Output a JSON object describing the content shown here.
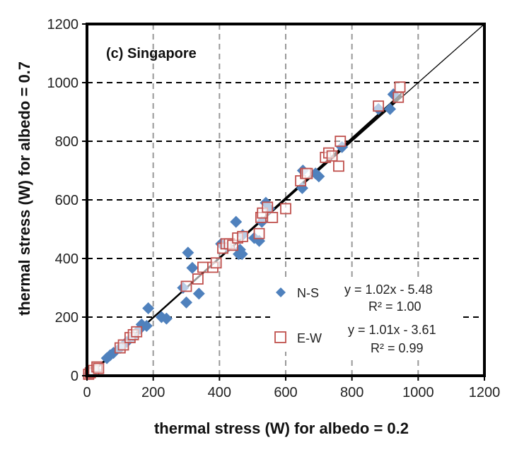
{
  "chart_data": {
    "type": "scatter",
    "title": "(c) Singapore",
    "xlabel": "thermal stress (W) for albedo = 0.2",
    "ylabel": "thermal stress (W) for albedo = 0.7",
    "xlim": [
      0,
      1200
    ],
    "ylim": [
      0,
      1200
    ],
    "xticks": [
      "0",
      "200",
      "400",
      "600",
      "800",
      "1000",
      "1200"
    ],
    "yticks": [
      "0",
      "200",
      "400",
      "600",
      "800",
      "1000",
      "1200"
    ],
    "grid": "dashed gray",
    "legend_position": "lower-right",
    "series": [
      {
        "name": "N-S",
        "marker": "diamond",
        "color": "#4f81bd",
        "points": [
          [
            5,
            5
          ],
          [
            10,
            8
          ],
          [
            15,
            10
          ],
          [
            25,
            20
          ],
          [
            60,
            60
          ],
          [
            70,
            70
          ],
          [
            80,
            78
          ],
          [
            100,
            95
          ],
          [
            120,
            115
          ],
          [
            140,
            135
          ],
          [
            160,
            160
          ],
          [
            165,
            175
          ],
          [
            180,
            170
          ],
          [
            185,
            230
          ],
          [
            225,
            200
          ],
          [
            240,
            195
          ],
          [
            290,
            300
          ],
          [
            300,
            250
          ],
          [
            305,
            420
          ],
          [
            318,
            368
          ],
          [
            338,
            280
          ],
          [
            405,
            450
          ],
          [
            425,
            440
          ],
          [
            450,
            525
          ],
          [
            458,
            415
          ],
          [
            462,
            430
          ],
          [
            468,
            415
          ],
          [
            470,
            480
          ],
          [
            505,
            470
          ],
          [
            520,
            460
          ],
          [
            528,
            525
          ],
          [
            540,
            590
          ],
          [
            550,
            570
          ],
          [
            650,
            640
          ],
          [
            652,
            700
          ],
          [
            690,
            690
          ],
          [
            700,
            680
          ],
          [
            770,
            780
          ],
          [
            880,
            910
          ],
          [
            915,
            910
          ],
          [
            925,
            960
          ]
        ]
      },
      {
        "name": "E-W",
        "marker": "square-open",
        "color": "#c0504d",
        "points": [
          [
            5,
            5
          ],
          [
            10,
            10
          ],
          [
            20,
            18
          ],
          [
            30,
            30
          ],
          [
            35,
            25
          ],
          [
            100,
            95
          ],
          [
            110,
            105
          ],
          [
            130,
            130
          ],
          [
            140,
            140
          ],
          [
            150,
            150
          ],
          [
            300,
            305
          ],
          [
            335,
            330
          ],
          [
            350,
            370
          ],
          [
            380,
            370
          ],
          [
            390,
            385
          ],
          [
            410,
            435
          ],
          [
            420,
            450
          ],
          [
            430,
            450
          ],
          [
            440,
            445
          ],
          [
            455,
            470
          ],
          [
            470,
            475
          ],
          [
            520,
            485
          ],
          [
            525,
            540
          ],
          [
            530,
            555
          ],
          [
            545,
            575
          ],
          [
            560,
            540
          ],
          [
            600,
            570
          ],
          [
            645,
            665
          ],
          [
            660,
            690
          ],
          [
            665,
            690
          ],
          [
            720,
            745
          ],
          [
            730,
            760
          ],
          [
            740,
            750
          ],
          [
            760,
            715
          ],
          [
            765,
            800
          ],
          [
            880,
            920
          ],
          [
            940,
            950
          ],
          [
            945,
            985
          ]
        ]
      }
    ],
    "trendlines": [
      {
        "series": "N-S",
        "slope": 1.02,
        "intercept": -5.48,
        "equation": "y = 1.02x - 5.48",
        "r2": "R² = 1.00"
      },
      {
        "series": "E-W",
        "slope": 1.01,
        "intercept": -3.61,
        "equation": "y = 1.01x - 3.61",
        "r2": "R² = 0.99"
      }
    ],
    "reference_line": {
      "slope": 1,
      "intercept": 0
    }
  }
}
